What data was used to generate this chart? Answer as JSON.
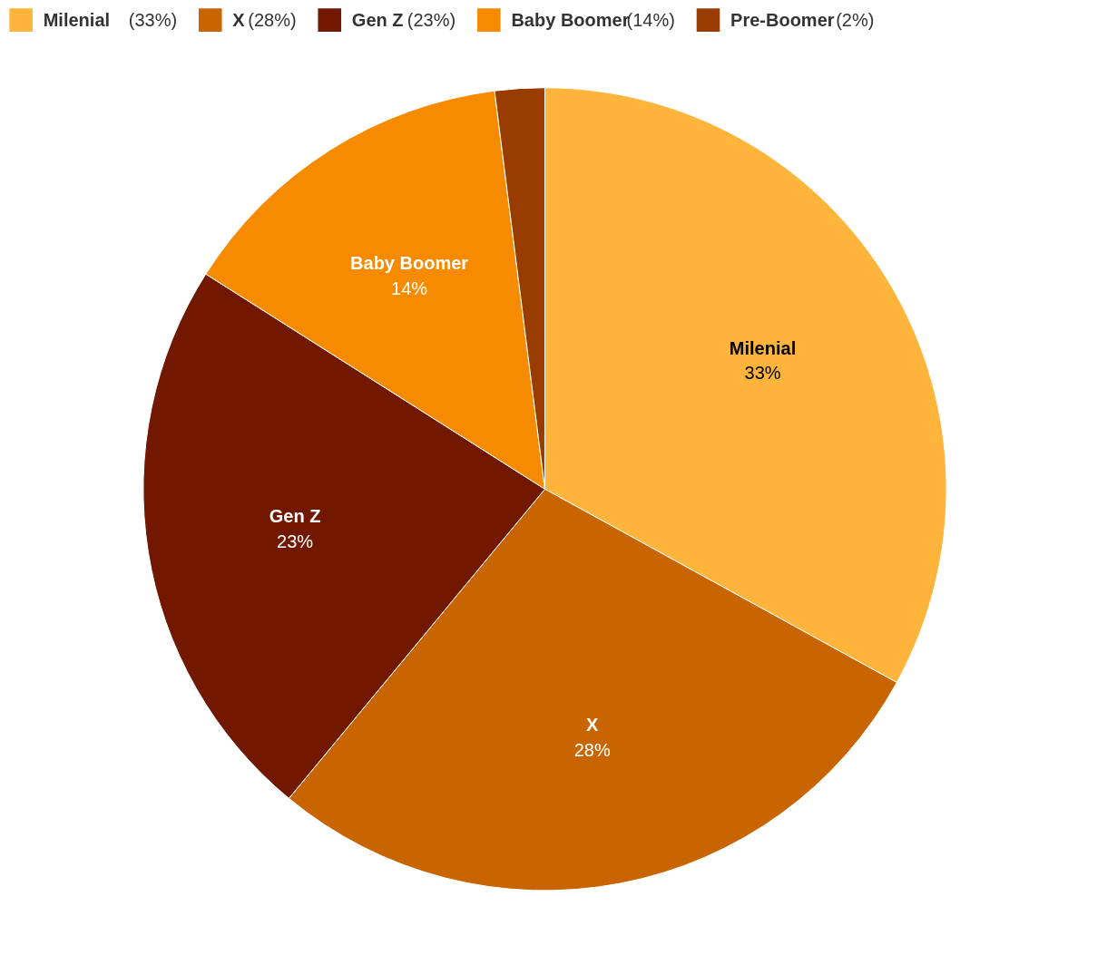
{
  "chart_data": {
    "type": "pie",
    "categories": [
      "Milenial",
      "X",
      "Gen Z",
      "Baby Boomer",
      "Pre-Boomer"
    ],
    "values": [
      33,
      28,
      23,
      14,
      2
    ],
    "colors": [
      "#ffb43c",
      "#c96500",
      "#731800",
      "#f78b00",
      "#993c00"
    ],
    "value_labels": [
      "33%",
      "28%",
      "23%",
      "14%",
      null
    ],
    "annotations": [
      "(33%)",
      "(28%)",
      "(23%)",
      "(14%)",
      "(2%)"
    ],
    "legend": "top"
  }
}
